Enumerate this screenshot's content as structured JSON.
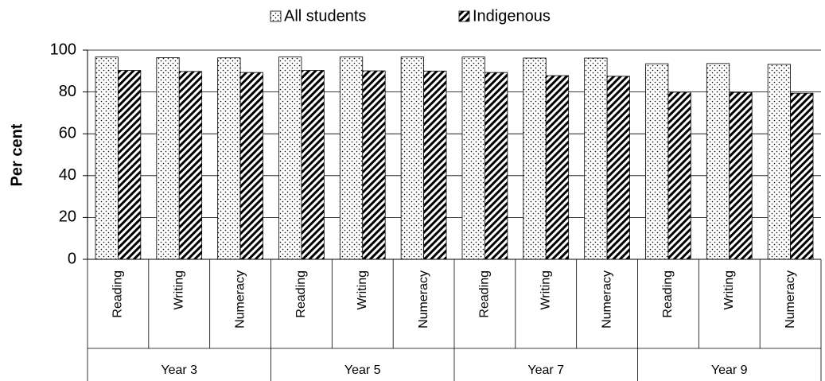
{
  "chart_data": {
    "type": "bar",
    "y_label": "Per cent",
    "categories": [
      "Reading",
      "Writing",
      "Numeracy",
      "Reading",
      "Writing",
      "Numeracy",
      "Reading",
      "Writing",
      "Numeracy",
      "Reading",
      "Writing",
      "Numeracy"
    ],
    "groups": [
      "Year 3",
      "Year 5",
      "Year 7",
      "Year 9"
    ],
    "series": [
      {
        "name": "All students",
        "color": "#ffffff",
        "pattern": "dots",
        "values": [
          96.7,
          96.4,
          96.3,
          96.7,
          96.7,
          96.7,
          96.7,
          96.2,
          96.2,
          93.5,
          93.6,
          93.2
        ]
      },
      {
        "name": "Indigenous",
        "color": "#000000",
        "pattern": "hatch",
        "values": [
          90.3,
          89.8,
          89.3,
          90.3,
          90.1,
          90.0,
          89.3,
          87.8,
          87.5,
          79.9,
          79.8,
          79.4
        ]
      }
    ],
    "ylim": [
      0,
      100
    ],
    "yticks": [
      0,
      20,
      40,
      60,
      80,
      100
    ],
    "grid": true,
    "legend": "top"
  }
}
